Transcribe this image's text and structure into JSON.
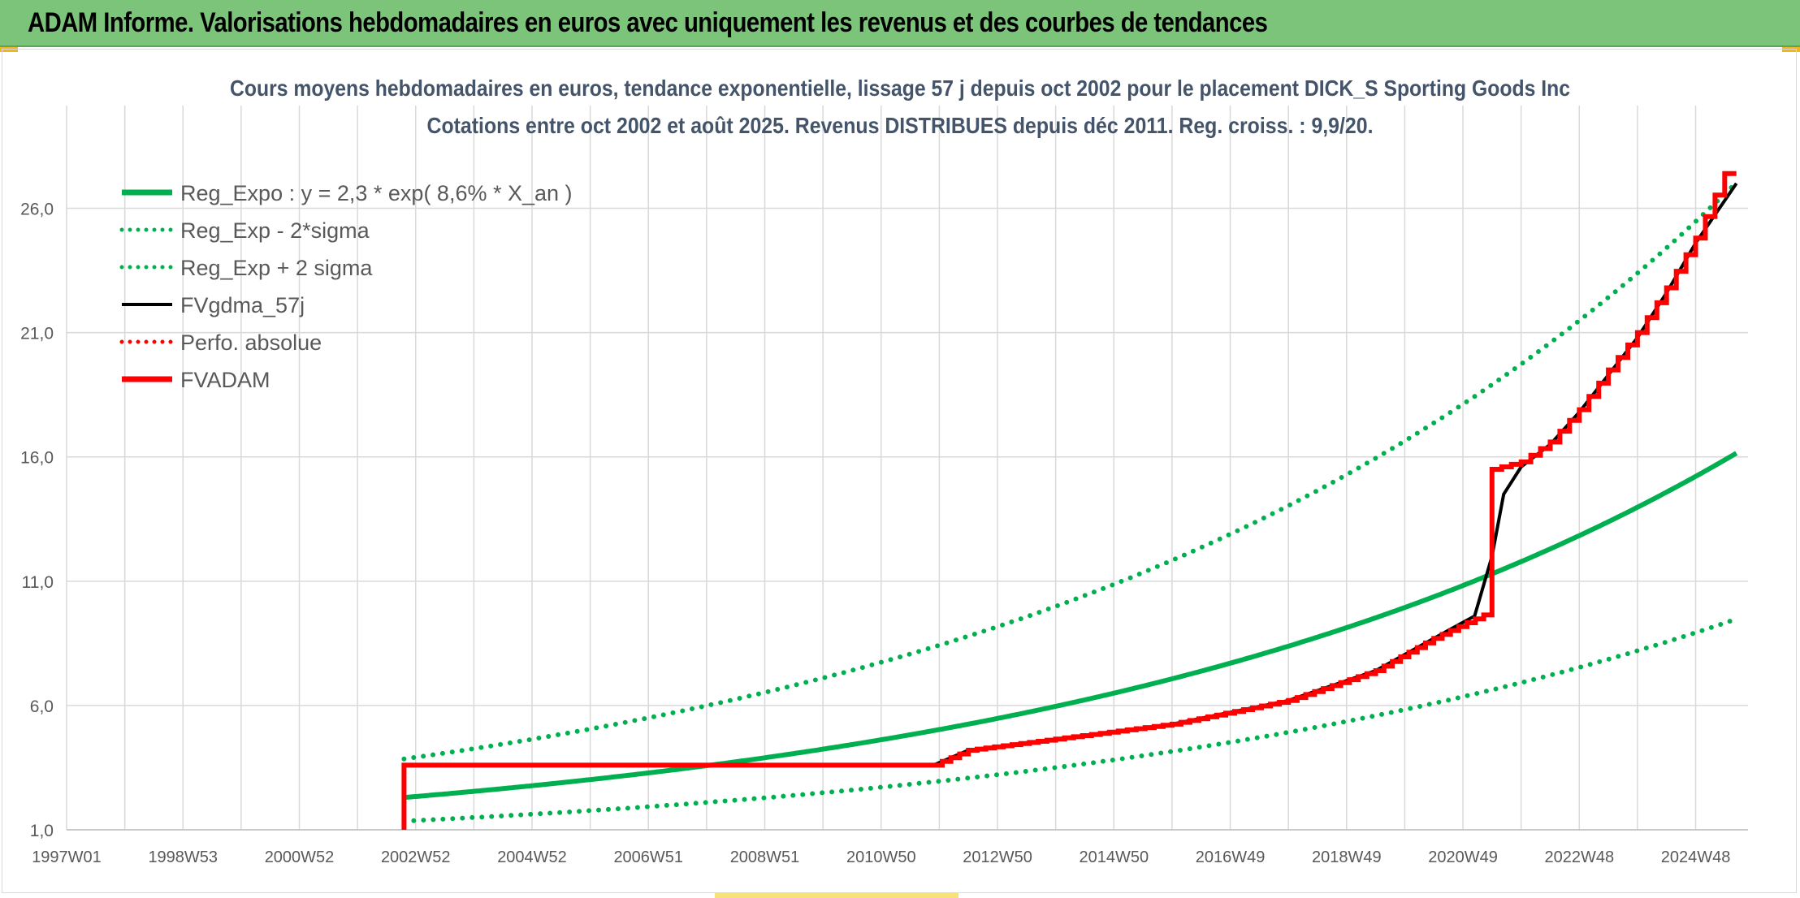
{
  "header": {
    "title": "ADAM Informe. Valorisations hebdomadaires en euros avec uniquement les revenus et des courbes de tendances"
  },
  "chart_data": {
    "type": "line",
    "title": "Cours moyens hebdomadaires en euros, tendance exponentielle, lissage 57 j depuis oct 2002 pour le placement DICK_S Sporting Goods Inc",
    "subtitle": "Cotations entre oct 2002 et août 2025. Revenus DISTRIBUES depuis déc 2011. Reg. croiss. : 9,9/20.",
    "xlabel": "",
    "ylabel": "",
    "ylim": [
      1.0,
      28.5
    ],
    "xlim": [
      1997.0,
      2025.9
    ],
    "yticks": [
      "1,0",
      "6,0",
      "11,0",
      "16,0",
      "21,0",
      "26,0"
    ],
    "ytick_values": [
      1,
      6,
      11,
      16,
      21,
      26
    ],
    "xticks": [
      "1997W01",
      "1998W53",
      "2000W52",
      "2002W52",
      "2004W52",
      "2006W51",
      "2008W51",
      "2010W50",
      "2012W50",
      "2014W50",
      "2016W49",
      "2018W49",
      "2020W49",
      "2022W48",
      "2024W48"
    ],
    "xtick_values": [
      1997.0,
      1999.0,
      2001.0,
      2003.0,
      2005.0,
      2007.0,
      2009.0,
      2011.0,
      2013.0,
      2015.0,
      2017.0,
      2019.0,
      2021.0,
      2023.0,
      2025.0
    ],
    "grid": true,
    "legend_position": "top-left",
    "series": [
      {
        "name": "Reg_Expo : y = 2,3 * exp( 8,6% *  X_an )",
        "color": "#00b050",
        "style": "solid",
        "x": [
          2002.8,
          2004,
          2006,
          2008,
          2010,
          2012,
          2014,
          2016,
          2018,
          2020,
          2022,
          2024,
          2025.7
        ],
        "y": [
          2.3,
          2.55,
          3.02,
          3.59,
          4.25,
          5.05,
          5.99,
          7.1,
          8.42,
          9.98,
          11.84,
          14.04,
          16.15
        ]
      },
      {
        "name": "Reg_Exp - 2*sigma",
        "color": "#00b050",
        "style": "dotted",
        "x": [
          2002.8,
          2004,
          2006,
          2008,
          2010,
          2012,
          2014,
          2016,
          2018,
          2020,
          2022,
          2024,
          2025.7
        ],
        "y": [
          1.35,
          1.5,
          1.78,
          2.11,
          2.5,
          2.97,
          3.52,
          4.17,
          4.95,
          5.87,
          6.96,
          8.25,
          9.5
        ]
      },
      {
        "name": "Reg_Exp + 2 sigma",
        "color": "#00b050",
        "style": "dotted",
        "x": [
          2002.8,
          2004,
          2006,
          2008,
          2010,
          2012,
          2014,
          2016,
          2018,
          2020,
          2022,
          2024,
          2025.7
        ],
        "y": [
          3.85,
          4.27,
          5.06,
          6.0,
          7.11,
          8.44,
          10.0,
          11.86,
          14.06,
          16.67,
          19.77,
          23.44,
          27.0
        ]
      },
      {
        "name": "FVgdma_57j",
        "color": "#000000",
        "style": "solid",
        "x": [
          2002.8,
          2011.9,
          2012.5,
          2014,
          2016,
          2018,
          2019.5,
          2020.5,
          2021.2,
          2021.5,
          2021.7,
          2022,
          2022.5,
          2023,
          2023.5,
          2024,
          2024.5,
          2025,
          2025.7
        ],
        "y": [
          3.6,
          3.6,
          4.2,
          4.65,
          5.25,
          6.2,
          7.4,
          8.7,
          9.6,
          12.0,
          14.5,
          15.6,
          16.5,
          17.8,
          19.3,
          20.8,
          22.6,
          24.6,
          27.0
        ]
      },
      {
        "name": "Perfo. absolue",
        "color": "#ff0000",
        "style": "dotted",
        "x": [],
        "y": []
      },
      {
        "name": "FVADAM",
        "color": "#ff0000",
        "style": "solid-step",
        "x": [
          2002.8,
          2002.8,
          2011.9,
          2012.5,
          2014,
          2016,
          2018,
          2019.5,
          2020.5,
          2021.5,
          2021.5,
          2022,
          2022.5,
          2023,
          2023.5,
          2024,
          2024.5,
          2025,
          2025.5,
          2025.7
        ],
        "y": [
          1.0,
          3.6,
          3.6,
          4.2,
          4.65,
          5.25,
          6.2,
          7.4,
          8.7,
          9.8,
          15.5,
          15.8,
          16.6,
          17.9,
          19.5,
          21.0,
          22.8,
          24.8,
          27.4,
          27.4
        ]
      }
    ]
  }
}
